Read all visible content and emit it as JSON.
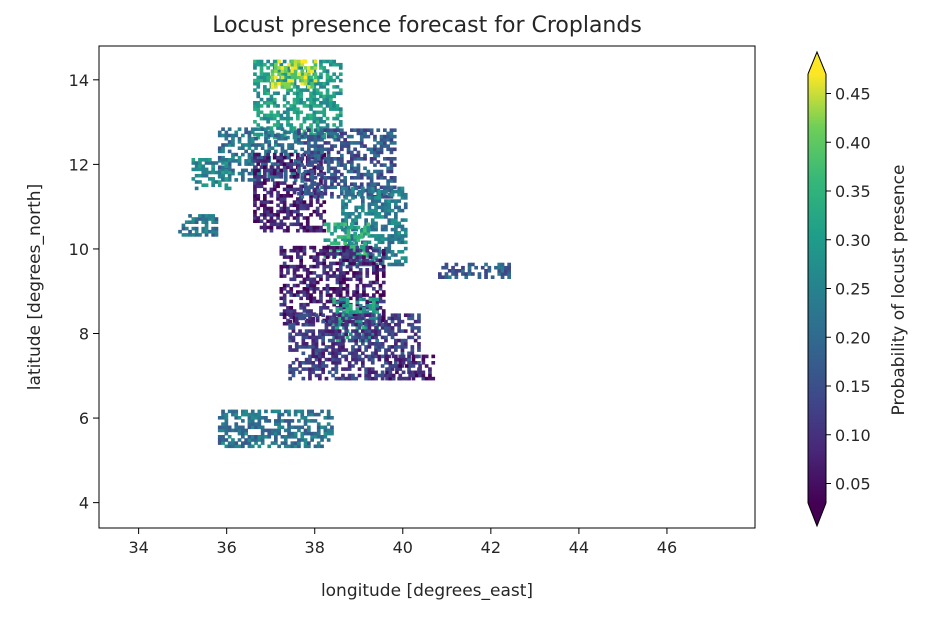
{
  "chart_data": {
    "type": "heatmap",
    "title": "Locust presence forecast for Croplands",
    "xlabel": "longitude [degrees_east]",
    "ylabel": "latitude [degrees_north]",
    "xlim": [
      33.1,
      48.0
    ],
    "ylim": [
      3.4,
      14.8
    ],
    "xticks": [
      34,
      36,
      38,
      40,
      42,
      44,
      46
    ],
    "yticks": [
      4,
      6,
      8,
      10,
      12,
      14
    ],
    "grid": false,
    "colorbar": {
      "label": "Probability of locust presence",
      "range": [
        0.03,
        0.47
      ],
      "extend": "both",
      "colormap": "viridis",
      "ticks": [
        0.05,
        0.1,
        0.15,
        0.2,
        0.25,
        0.3,
        0.35,
        0.4,
        0.45
      ]
    },
    "regions": [
      {
        "lon": [
          36.6,
          38.6
        ],
        "lat": [
          12.6,
          14.4
        ],
        "value": 0.3
      },
      {
        "lon": [
          37.0,
          38.0
        ],
        "lat": [
          13.8,
          14.4
        ],
        "value": 0.43
      },
      {
        "lon": [
          35.8,
          37.6
        ],
        "lat": [
          11.6,
          12.8
        ],
        "value": 0.22
      },
      {
        "lon": [
          36.6,
          38.2
        ],
        "lat": [
          10.4,
          12.2
        ],
        "value": 0.07
      },
      {
        "lon": [
          37.6,
          39.8
        ],
        "lat": [
          11.2,
          12.8
        ],
        "value": 0.16
      },
      {
        "lon": [
          38.6,
          40.1
        ],
        "lat": [
          9.6,
          11.4
        ],
        "value": 0.24
      },
      {
        "lon": [
          38.2,
          39.2
        ],
        "lat": [
          9.8,
          10.6
        ],
        "value": 0.33
      },
      {
        "lon": [
          37.2,
          39.6
        ],
        "lat": [
          8.2,
          10.0
        ],
        "value": 0.08
      },
      {
        "lon": [
          38.4,
          39.4
        ],
        "lat": [
          7.8,
          8.8
        ],
        "value": 0.3
      },
      {
        "lon": [
          37.4,
          40.4
        ],
        "lat": [
          6.9,
          8.4
        ],
        "value": 0.12
      },
      {
        "lon": [
          39.6,
          40.7
        ],
        "lat": [
          6.9,
          7.5
        ],
        "value": 0.08
      },
      {
        "lon": [
          40.8,
          42.4
        ],
        "lat": [
          9.3,
          9.6
        ],
        "value": 0.18
      },
      {
        "lon": [
          34.9,
          35.8
        ],
        "lat": [
          10.3,
          10.8
        ],
        "value": 0.22
      },
      {
        "lon": [
          35.2,
          36.1
        ],
        "lat": [
          11.4,
          12.1
        ],
        "value": 0.26
      },
      {
        "lon": [
          35.8,
          38.4
        ],
        "lat": [
          5.3,
          6.2
        ],
        "value": 0.22
      }
    ]
  }
}
